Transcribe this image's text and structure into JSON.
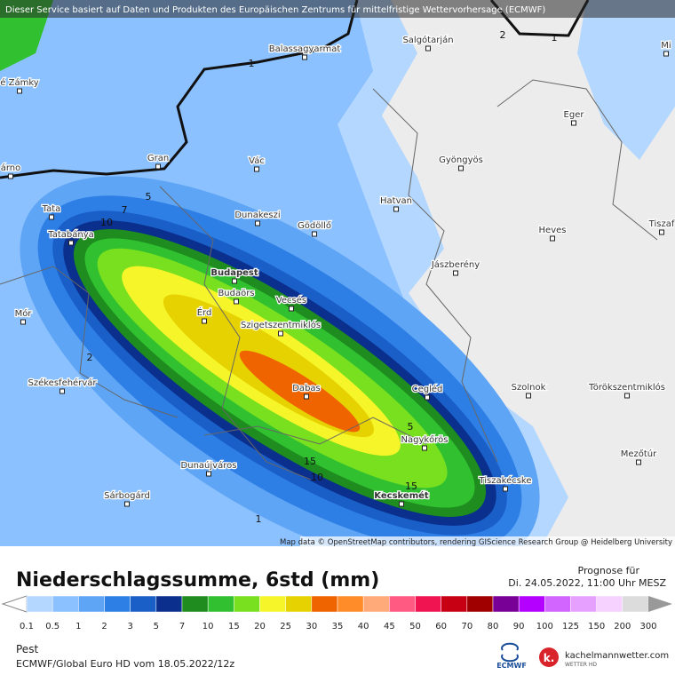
{
  "header": {
    "notice": "Dieser Service basiert auf Daten und Produkten des Europäischen Zentrums für mittelfristige Wettervorhersage (ECMWF)",
    "attribution": "Map data © OpenStreetMap contributors, rendering GIScience Research Group @ Heidelberg University"
  },
  "map": {
    "cities": [
      "Balassagyarmat",
      "Salgótarján",
      "é Zámky",
      "Mi",
      "Eger",
      "Gran",
      "Vác",
      "Gyöngyös",
      "árno",
      "Tata",
      "Dunakeszi",
      "Gödöllő",
      "Hatvan",
      "Heves",
      "Tiszaf",
      "Tatabánya",
      "Jászberény",
      "Budapest",
      "Budaörs",
      "Vecsés",
      "Mór",
      "Érd",
      "Szigetszentmiklós",
      "Székesfehérvár",
      "Dabas",
      "Cegléd",
      "Szolnok",
      "Törökszentmiklós",
      "Nagykőrös",
      "Mezőtúr",
      "Dunaújváros",
      "Tiszakécske",
      "Kecskemét",
      "Sárbogárd"
    ],
    "contour_labels": [
      "1",
      "2",
      "1",
      "5",
      "7",
      "10",
      "2",
      "5",
      "15",
      "10",
      "15",
      "1"
    ]
  },
  "title": "Niederschlagssumme, 6std (mm)",
  "forecast": {
    "label": "Prognose für",
    "time": "Di. 24.05.2022, 11:00 Uhr MESZ"
  },
  "legend": {
    "labels": [
      0.1,
      0.5,
      1,
      2,
      3,
      5,
      7,
      10,
      15,
      20,
      25,
      30,
      35,
      40,
      45,
      50,
      60,
      70,
      80,
      90,
      100,
      125,
      150,
      200,
      300
    ],
    "colors": [
      "#b4d7ff",
      "#8cc1ff",
      "#5fa5f5",
      "#2d7fe6",
      "#1a5fc8",
      "#0a2f8c",
      "#1e8c1e",
      "#30c030",
      "#78e01e",
      "#f5f52a",
      "#e6d200",
      "#f06400",
      "#ff8c28",
      "#ffaa78",
      "#ff5a82",
      "#f01450",
      "#c80014",
      "#a00000",
      "#780096",
      "#b400ff",
      "#d264ff",
      "#e6a0ff",
      "#f5d2ff",
      "#dcdcdc"
    ]
  },
  "footer": {
    "region": "Pest",
    "model": "ECMWF/Global Euro HD vom  18.05.2022/12z",
    "logo_ecmwf": "ECMWF",
    "logo_k": "k.",
    "logo_site": "kachelmannwetter.com",
    "logo_sub": "WETTER HD"
  }
}
